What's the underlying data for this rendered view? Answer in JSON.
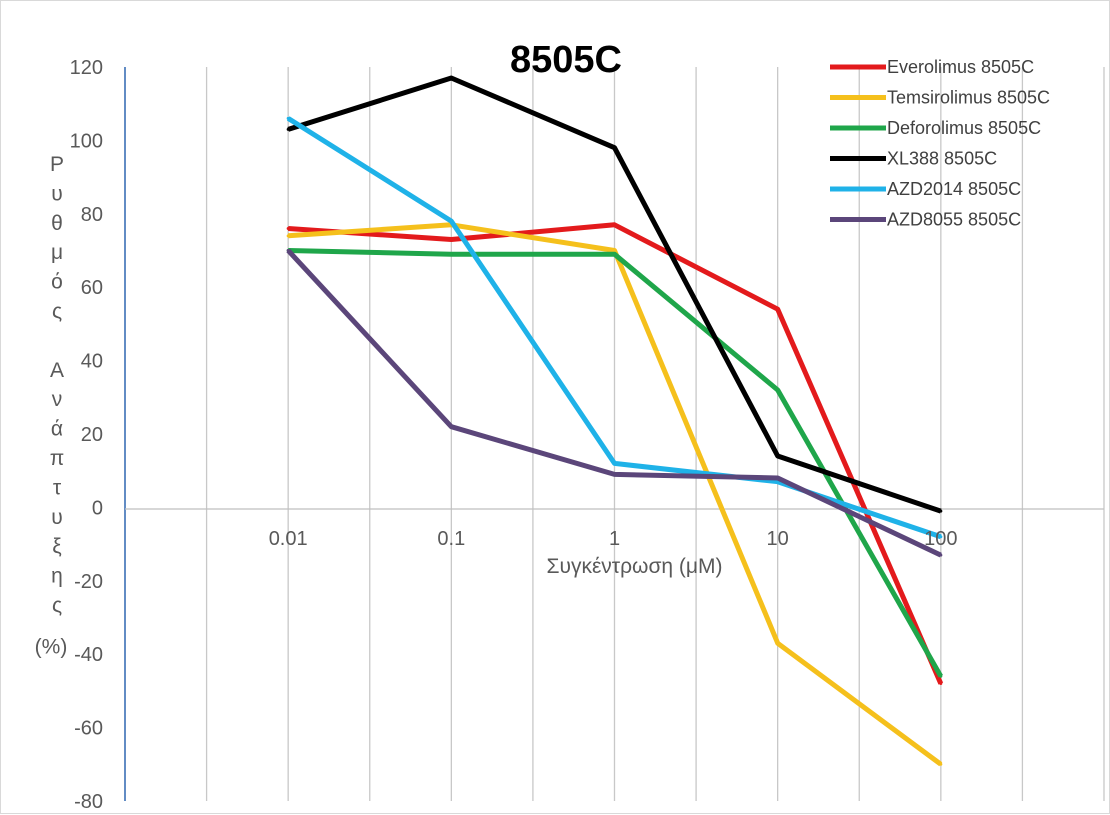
{
  "chart_data": {
    "type": "line",
    "title": "8505C",
    "xlabel": "Συγκέντρωση (μM)",
    "ylabel": "Ρυθμός Ανάπτυξης (%)",
    "ylabel_lines": [
      "Ρ",
      "υ",
      "θ",
      "μ",
      "ό",
      "ς",
      "",
      "Α",
      "ν",
      "ά",
      "π",
      "τ",
      "υ",
      "ξ",
      "η",
      "ς",
      "(%)"
    ],
    "x_scale": "log",
    "categories": [
      "0.01",
      "0.1",
      "1",
      "10",
      "100"
    ],
    "x": [
      0.01,
      0.1,
      1,
      10,
      100
    ],
    "xlim": [
      0.001,
      1000
    ],
    "ylim": [
      -80,
      120
    ],
    "yticks": [
      -80,
      -60,
      -40,
      -20,
      0,
      20,
      40,
      60,
      80,
      100,
      120
    ],
    "grid": {
      "vertical": true,
      "horizontal": false
    },
    "legend_position": "top-right",
    "series": [
      {
        "name": "Everolimus 8505C",
        "color": "#e31a1c",
        "values": [
          76,
          73,
          77,
          54,
          -48
        ]
      },
      {
        "name": "Temsirolimus 8505C",
        "color": "#f5c01c",
        "values": [
          74,
          77,
          70,
          -37,
          -70
        ]
      },
      {
        "name": "Deforolimus 8505C",
        "color": "#1fa64a",
        "values": [
          70,
          69,
          69,
          32,
          -46
        ]
      },
      {
        "name": "XL388 8505C",
        "color": "#000000",
        "values": [
          103,
          117,
          98,
          14,
          -1
        ]
      },
      {
        "name": "AZD2014 8505C",
        "color": "#1fb2e8",
        "values": [
          106,
          78,
          12,
          7,
          -8
        ]
      },
      {
        "name": "AZD8055 8505C",
        "color": "#5b467a",
        "values": [
          70,
          22,
          9,
          8,
          -13
        ]
      }
    ]
  }
}
